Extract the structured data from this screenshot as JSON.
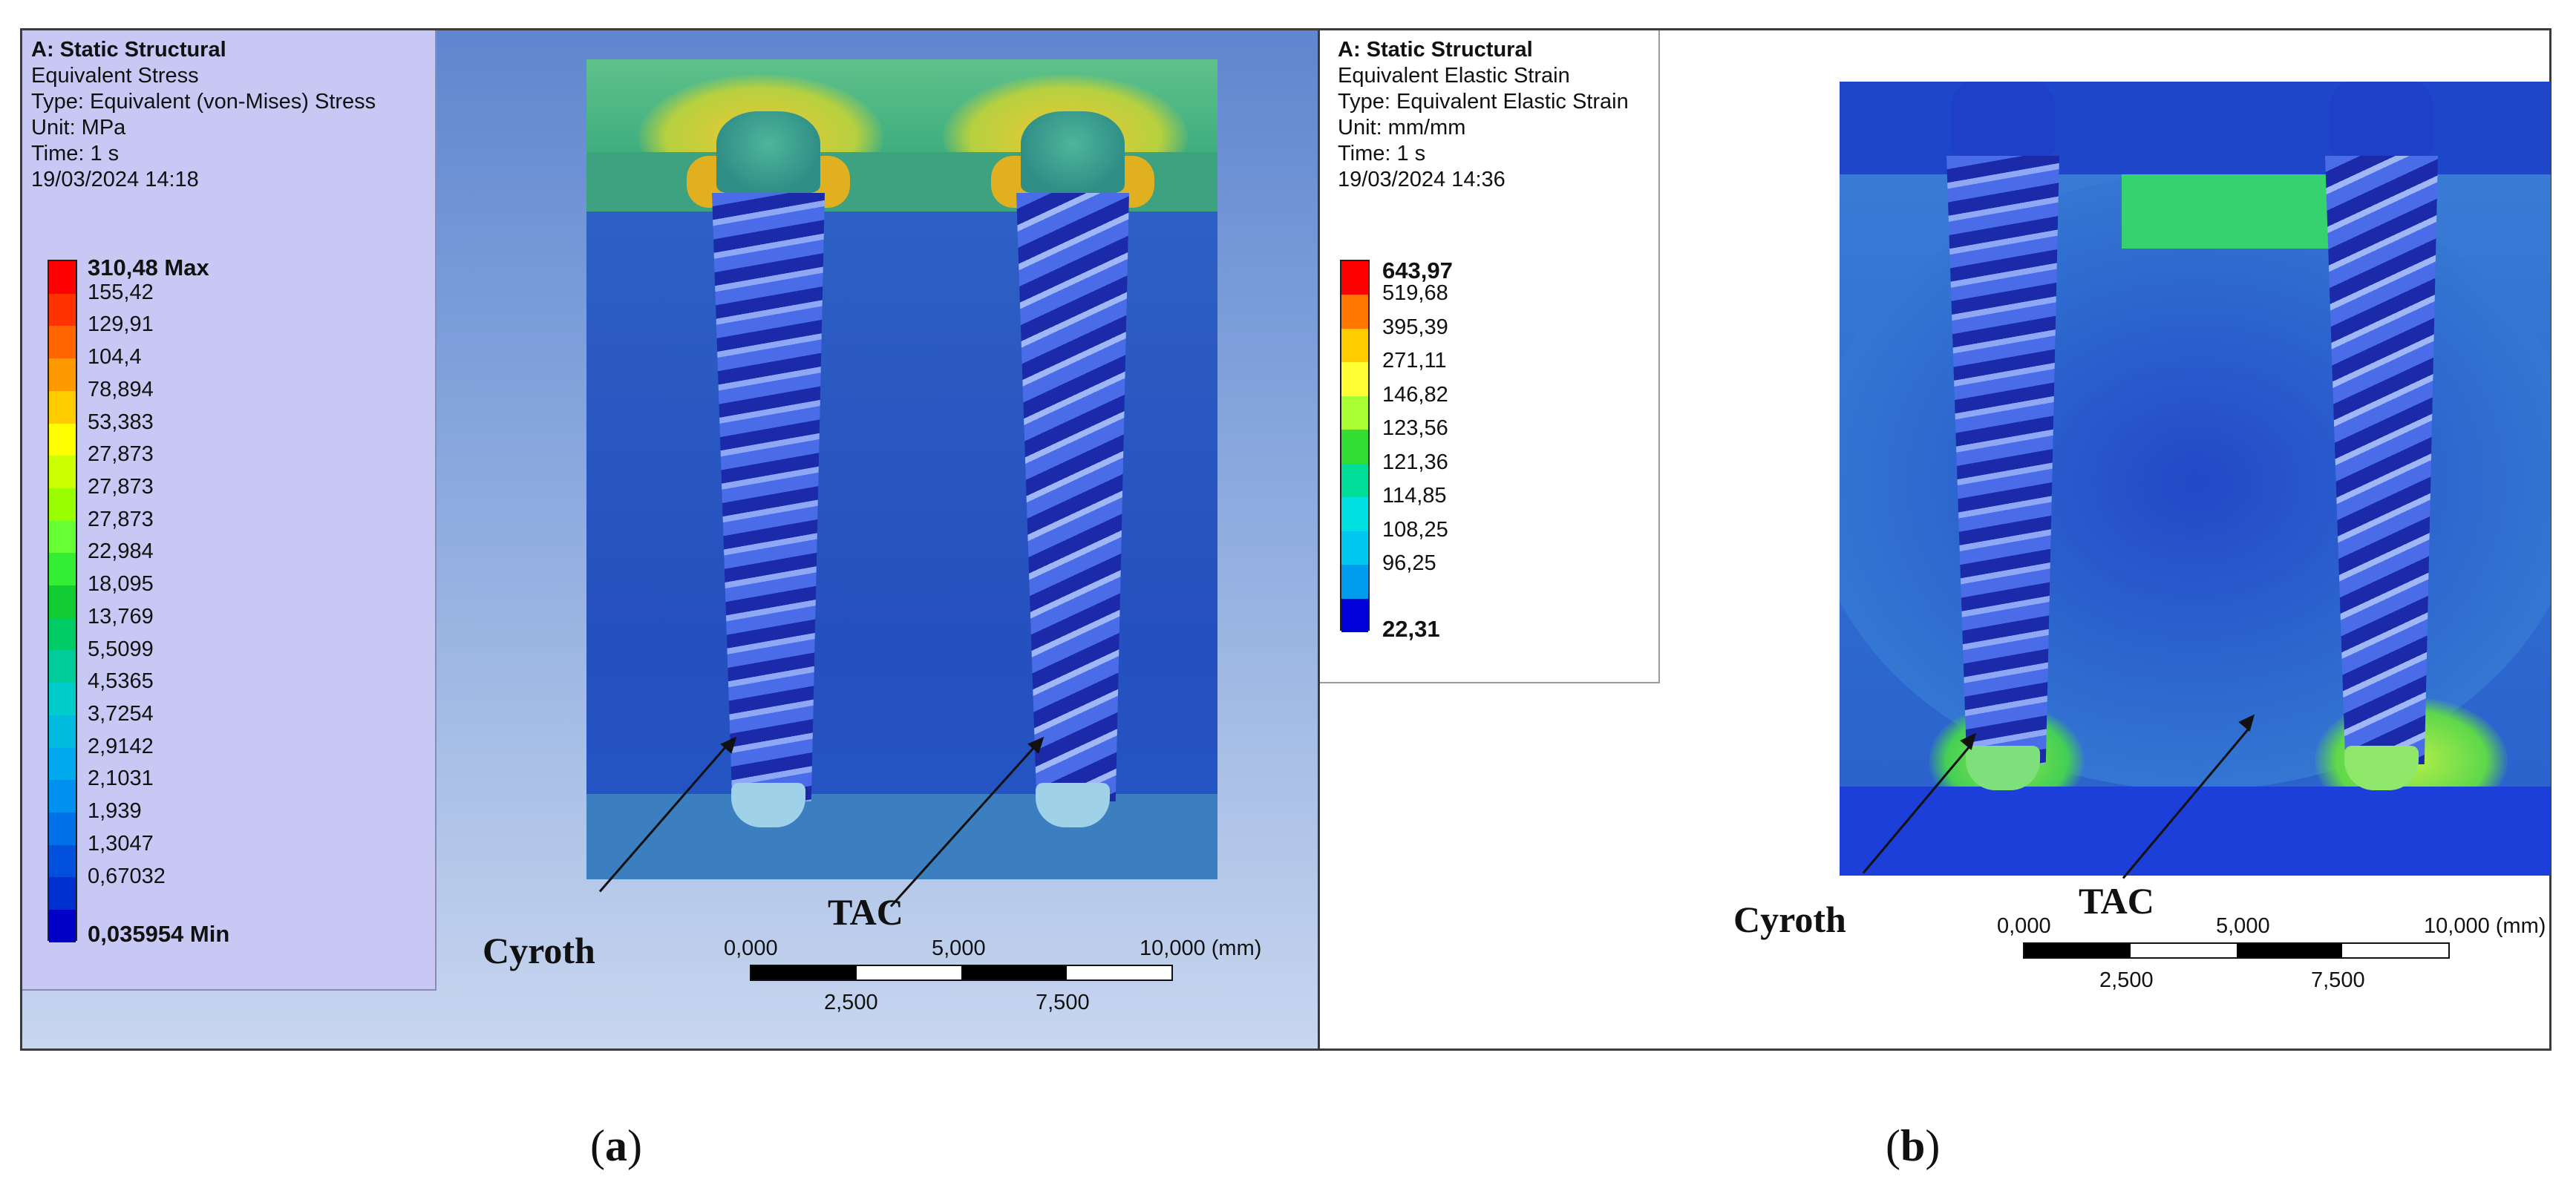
{
  "panel_a": {
    "header": {
      "title": "A: Static Structural",
      "result": "Equivalent Stress",
      "type": "Type: Equivalent (von-Mises) Stress",
      "unit": "Unit: MPa",
      "time": "Time: 1 s",
      "date": "19/03/2024 14:18"
    },
    "legend": {
      "max_label": "310,48 Max",
      "values": [
        "155,42",
        "129,91",
        "104,4",
        "78,894",
        "53,383",
        "27,873",
        "27,873",
        "27,873",
        "22,984",
        "18,095",
        "13,769",
        "5,5099",
        "4,5365",
        "3,7254",
        "2,9142",
        "2,1031",
        "1,939",
        "1,3047",
        "0,67032"
      ],
      "min_label": "0,035954 Min",
      "colors": [
        "#ff0000",
        "#ff3300",
        "#ff6600",
        "#ff9900",
        "#ffcc00",
        "#ffff00",
        "#ccff00",
        "#99ff00",
        "#66ff33",
        "#33ee33",
        "#11cc33",
        "#00cc66",
        "#00cc99",
        "#00cccc",
        "#00bbdd",
        "#00a8ee",
        "#0090f0",
        "#0070e8",
        "#0050dd",
        "#0030d0",
        "#0000c8"
      ]
    },
    "labels": {
      "left": "Cyroth",
      "right": "TAC"
    },
    "scale": {
      "top": [
        "0,000",
        "5,000",
        "10,000 (mm)"
      ],
      "bottom": [
        "2,500",
        "7,500"
      ]
    },
    "caption": "a"
  },
  "panel_b": {
    "header": {
      "title": "A: Static Structural",
      "result": "Equivalent Elastic Strain",
      "type": "Type: Equivalent Elastic Strain",
      "unit": "Unit: mm/mm",
      "time": "Time: 1 s",
      "date": "19/03/2024 14:36"
    },
    "legend": {
      "max_label": "643,97",
      "values": [
        "519,68",
        "395,39",
        "271,11",
        "146,82",
        "123,56",
        "121,36",
        "114,85",
        "108,25",
        "96,25"
      ],
      "min_label": "22,31",
      "colors": [
        "#ff0000",
        "#ff7700",
        "#ffcc00",
        "#ffff33",
        "#aaff33",
        "#33dd33",
        "#00dd99",
        "#00e0e0",
        "#00c8f0",
        "#009cf0",
        "#0000d8"
      ]
    },
    "labels": {
      "left": "Cyroth",
      "right": "TAC"
    },
    "scale": {
      "top": [
        "0,000",
        "5,000",
        "10,000 (mm)"
      ],
      "bottom": [
        "2,500",
        "7,500"
      ]
    },
    "caption": "b"
  }
}
